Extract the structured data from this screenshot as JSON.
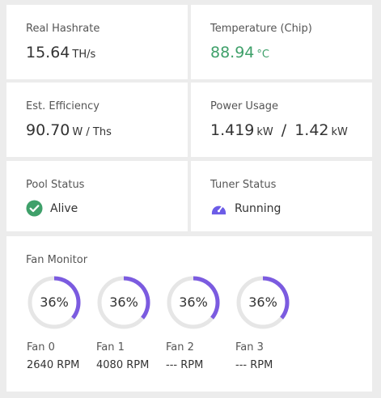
{
  "hashrate": {
    "label": "Real Hashrate",
    "value": "15.64",
    "unit": "TH/s"
  },
  "temperature": {
    "label": "Temperature (Chip)",
    "value": "88.94",
    "unit": "°C",
    "color": "#3fa06a"
  },
  "efficiency": {
    "label": "Est. Efficiency",
    "value": "90.70",
    "unit": "W / Ths"
  },
  "power": {
    "label": "Power Usage",
    "value": "1.419",
    "unit": "kW",
    "separator": "/",
    "limit": "1.42",
    "limit_unit": "kW"
  },
  "pool": {
    "label": "Pool Status",
    "status": "Alive",
    "icon": "check-circle-icon",
    "color": "#3fa06a"
  },
  "tuner": {
    "label": "Tuner Status",
    "status": "Running",
    "icon": "speedometer-icon",
    "color": "#6c5ce7"
  },
  "fan_monitor": {
    "title": "Fan Monitor",
    "accent": "#7b5be0",
    "fans": [
      {
        "name": "Fan 0",
        "percent_label": "36%",
        "percent": 36,
        "rpm": "2640 RPM"
      },
      {
        "name": "Fan 1",
        "percent_label": "36%",
        "percent": 36,
        "rpm": "4080 RPM"
      },
      {
        "name": "Fan 2",
        "percent_label": "36%",
        "percent": 36,
        "rpm": "--- RPM"
      },
      {
        "name": "Fan 3",
        "percent_label": "36%",
        "percent": 36,
        "rpm": "--- RPM"
      }
    ]
  }
}
